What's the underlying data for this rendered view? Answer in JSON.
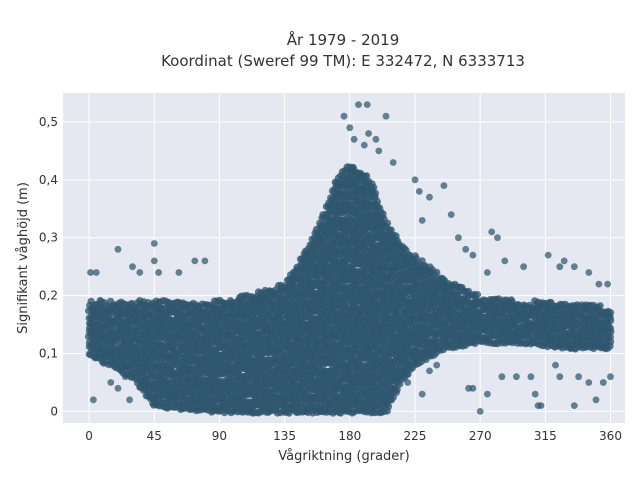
{
  "chart_data": {
    "type": "scatter",
    "title_line1": "År 1979 - 2019",
    "title_line2": "Koordinat (Sweref 99 TM): E 332472, N 6333713",
    "xlabel": "Vågriktning (grader)",
    "ylabel": "Signifikant våghöjd (m)",
    "xlim": [
      -18,
      370
    ],
    "ylim": [
      -0.02,
      0.55
    ],
    "xticks": [
      0,
      45,
      90,
      135,
      180,
      225,
      270,
      315,
      360
    ],
    "yticks": [
      0,
      0.1,
      0.2,
      0.3,
      0.4,
      0.5
    ],
    "ytick_labels": [
      "0",
      "0,1",
      "0,2",
      "0,3",
      "0,4",
      "0,5"
    ],
    "grid": true,
    "background": "#e5e8f0",
    "marker_color": "#2e566e",
    "envelope": [
      {
        "x": 0,
        "ymin": 0.1,
        "ymax": 0.19
      },
      {
        "x": 30,
        "ymin": 0.06,
        "ymax": 0.19
      },
      {
        "x": 45,
        "ymin": 0.01,
        "ymax": 0.19
      },
      {
        "x": 90,
        "ymin": 0.0,
        "ymax": 0.19
      },
      {
        "x": 135,
        "ymin": 0.0,
        "ymax": 0.22
      },
      {
        "x": 155,
        "ymin": 0.0,
        "ymax": 0.3
      },
      {
        "x": 170,
        "ymin": 0.0,
        "ymax": 0.4
      },
      {
        "x": 180,
        "ymin": 0.0,
        "ymax": 0.43
      },
      {
        "x": 195,
        "ymin": 0.0,
        "ymax": 0.4
      },
      {
        "x": 205,
        "ymin": 0.0,
        "ymax": 0.33
      },
      {
        "x": 215,
        "ymin": 0.05,
        "ymax": 0.29
      },
      {
        "x": 225,
        "ymin": 0.08,
        "ymax": 0.27
      },
      {
        "x": 245,
        "ymin": 0.11,
        "ymax": 0.23
      },
      {
        "x": 270,
        "ymin": 0.12,
        "ymax": 0.2
      },
      {
        "x": 300,
        "ymin": 0.12,
        "ymax": 0.19
      },
      {
        "x": 330,
        "ymin": 0.11,
        "ymax": 0.19
      },
      {
        "x": 360,
        "ymin": 0.11,
        "ymax": 0.18
      }
    ],
    "outliers": [
      {
        "x": 3,
        "y": 0.02
      },
      {
        "x": 1,
        "y": 0.24
      },
      {
        "x": 5,
        "y": 0.24
      },
      {
        "x": 20,
        "y": 0.28
      },
      {
        "x": 30,
        "y": 0.25
      },
      {
        "x": 35,
        "y": 0.24
      },
      {
        "x": 45,
        "y": 0.29
      },
      {
        "x": 45,
        "y": 0.26
      },
      {
        "x": 48,
        "y": 0.24
      },
      {
        "x": 62,
        "y": 0.24
      },
      {
        "x": 73,
        "y": 0.26
      },
      {
        "x": 80,
        "y": 0.26
      },
      {
        "x": 85,
        "y": 0.18
      },
      {
        "x": 176,
        "y": 0.51
      },
      {
        "x": 180,
        "y": 0.49
      },
      {
        "x": 186,
        "y": 0.53
      },
      {
        "x": 192,
        "y": 0.53
      },
      {
        "x": 193,
        "y": 0.48
      },
      {
        "x": 198,
        "y": 0.47
      },
      {
        "x": 205,
        "y": 0.51
      },
      {
        "x": 200,
        "y": 0.45
      },
      {
        "x": 190,
        "y": 0.46
      },
      {
        "x": 183,
        "y": 0.47
      },
      {
        "x": 210,
        "y": 0.43
      },
      {
        "x": 225,
        "y": 0.4
      },
      {
        "x": 228,
        "y": 0.38
      },
      {
        "x": 235,
        "y": 0.37
      },
      {
        "x": 245,
        "y": 0.39
      },
      {
        "x": 230,
        "y": 0.33
      },
      {
        "x": 250,
        "y": 0.34
      },
      {
        "x": 255,
        "y": 0.3
      },
      {
        "x": 260,
        "y": 0.28
      },
      {
        "x": 265,
        "y": 0.27
      },
      {
        "x": 278,
        "y": 0.31
      },
      {
        "x": 282,
        "y": 0.3
      },
      {
        "x": 275,
        "y": 0.24
      },
      {
        "x": 287,
        "y": 0.26
      },
      {
        "x": 300,
        "y": 0.25
      },
      {
        "x": 317,
        "y": 0.27
      },
      {
        "x": 325,
        "y": 0.25
      },
      {
        "x": 328,
        "y": 0.26
      },
      {
        "x": 335,
        "y": 0.25
      },
      {
        "x": 345,
        "y": 0.24
      },
      {
        "x": 352,
        "y": 0.22
      },
      {
        "x": 358,
        "y": 0.22
      },
      {
        "x": 220,
        "y": 0.05
      },
      {
        "x": 230,
        "y": 0.03
      },
      {
        "x": 235,
        "y": 0.07
      },
      {
        "x": 240,
        "y": 0.08
      },
      {
        "x": 262,
        "y": 0.04
      },
      {
        "x": 265,
        "y": 0.04
      },
      {
        "x": 270,
        "y": 0.0
      },
      {
        "x": 275,
        "y": 0.03
      },
      {
        "x": 285,
        "y": 0.06
      },
      {
        "x": 295,
        "y": 0.06
      },
      {
        "x": 305,
        "y": 0.06
      },
      {
        "x": 308,
        "y": 0.03
      },
      {
        "x": 310,
        "y": 0.01
      },
      {
        "x": 312,
        "y": 0.01
      },
      {
        "x": 322,
        "y": 0.08
      },
      {
        "x": 325,
        "y": 0.06
      },
      {
        "x": 335,
        "y": 0.01
      },
      {
        "x": 338,
        "y": 0.06
      },
      {
        "x": 345,
        "y": 0.05
      },
      {
        "x": 350,
        "y": 0.02
      },
      {
        "x": 355,
        "y": 0.05
      },
      {
        "x": 360,
        "y": 0.06
      },
      {
        "x": 15,
        "y": 0.05
      },
      {
        "x": 20,
        "y": 0.04
      },
      {
        "x": 25,
        "y": 0.06
      },
      {
        "x": 28,
        "y": 0.02
      },
      {
        "x": 100,
        "y": 0.0
      },
      {
        "x": 110,
        "y": 0.0
      },
      {
        "x": 125,
        "y": 0.0
      },
      {
        "x": 150,
        "y": 0.0
      },
      {
        "x": 160,
        "y": 0.0
      }
    ]
  }
}
